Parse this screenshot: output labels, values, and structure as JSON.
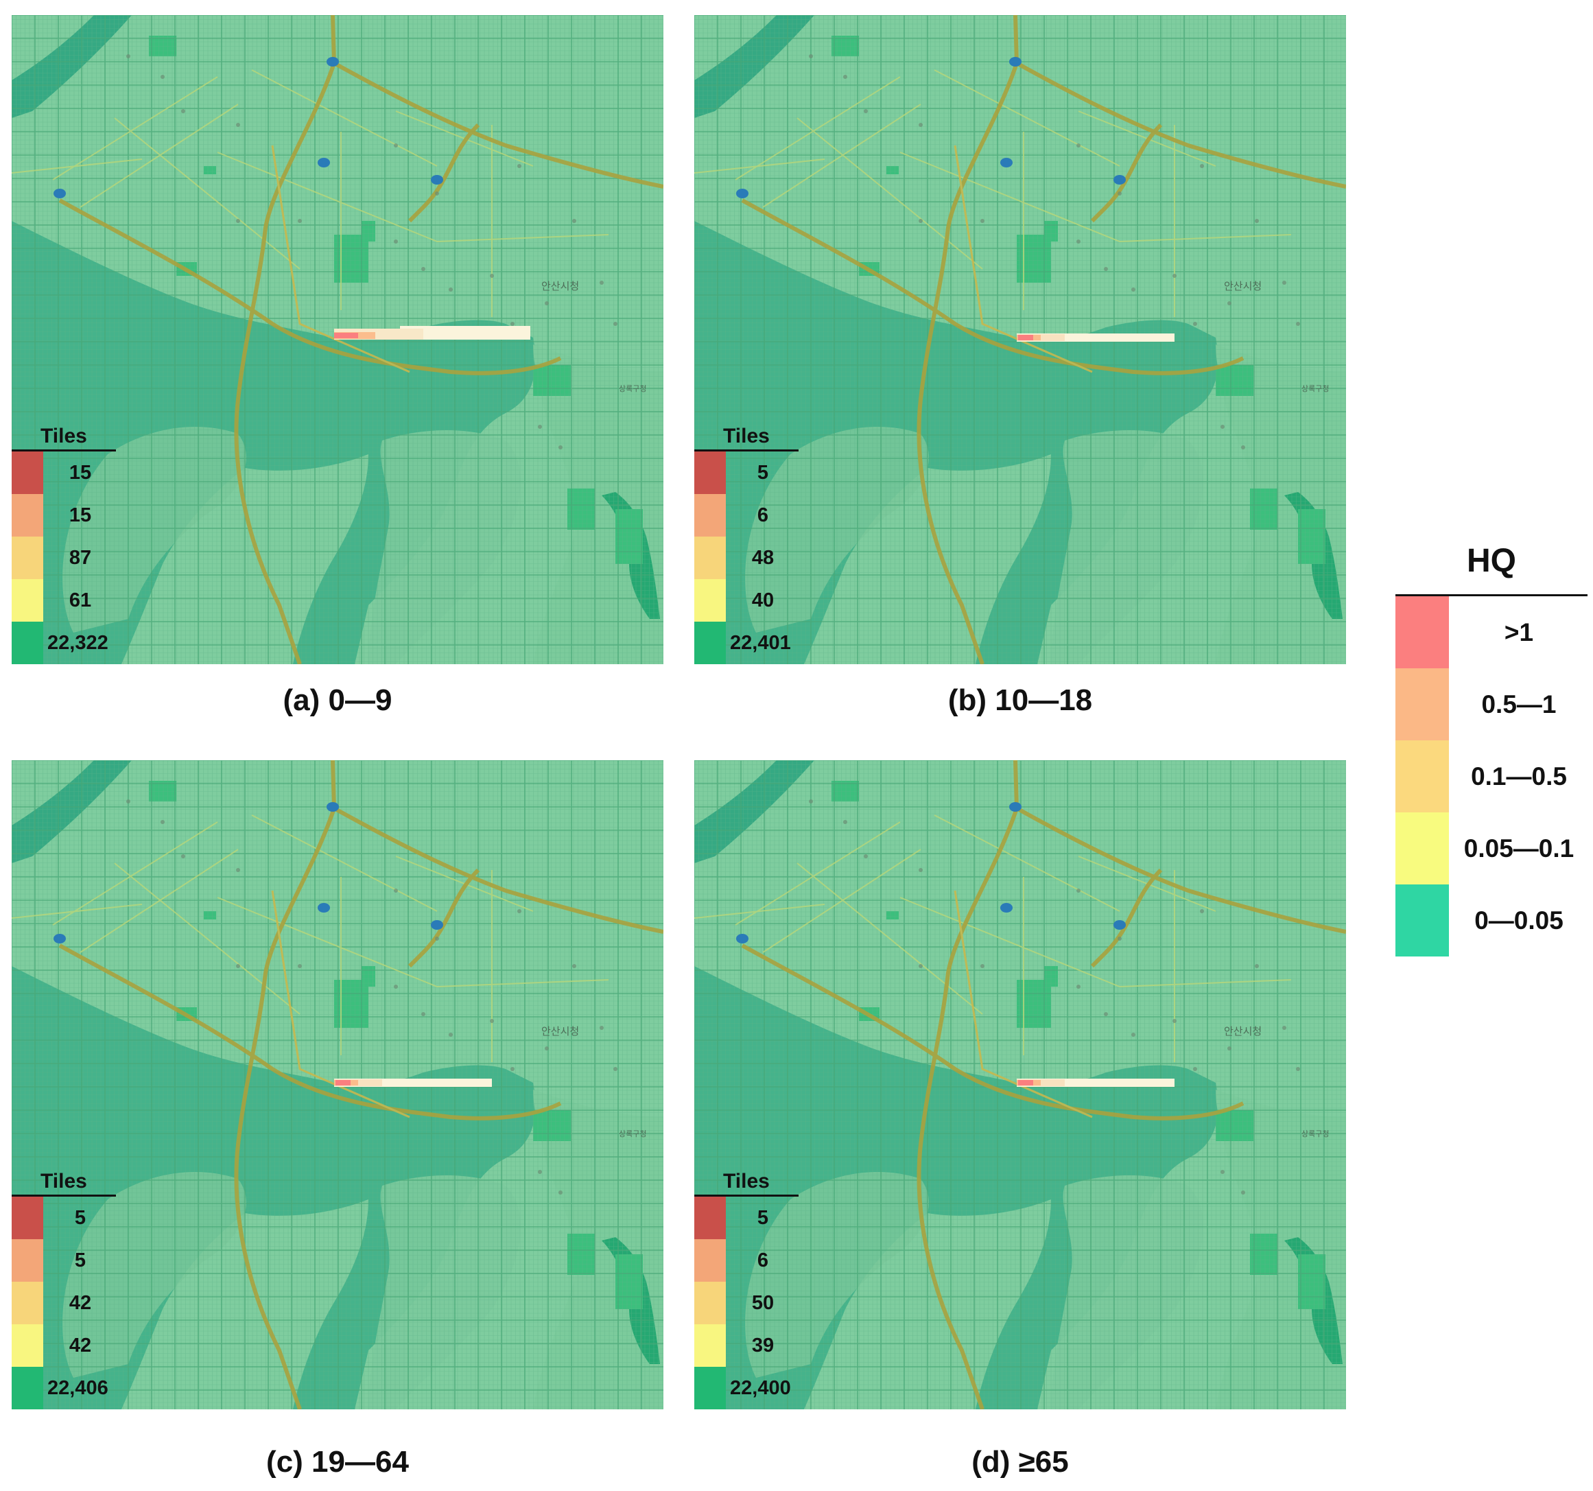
{
  "panels": [
    {
      "id": "a",
      "caption": "(a) 0—9",
      "tiles_title": "Tiles",
      "counts": [
        "15",
        "15",
        "87",
        "61",
        "22,322"
      ],
      "plume": "long"
    },
    {
      "id": "b",
      "caption": "(b) 10—18",
      "tiles_title": "Tiles",
      "counts": [
        "5",
        "6",
        "48",
        "40",
        "22,401"
      ],
      "plume": "short"
    },
    {
      "id": "c",
      "caption": "(c) 19—64",
      "tiles_title": "Tiles",
      "counts": [
        "5",
        "5",
        "42",
        "42",
        "22,406"
      ],
      "plume": "short"
    },
    {
      "id": "d",
      "caption": "(d) ≥65",
      "tiles_title": "Tiles",
      "counts": [
        "5",
        "6",
        "50",
        "39",
        "22,400"
      ],
      "plume": "short"
    }
  ],
  "tile_colors": [
    "#c9504a",
    "#f3a678",
    "#f7d57a",
    "#f8f680",
    "#22b873"
  ],
  "hq_legend": {
    "title": "HQ",
    "classes": [
      {
        "label": ">1",
        "color": "#fb7f7f"
      },
      {
        "label": "0.5—1",
        "color": "#fbb886"
      },
      {
        "label": "0.1—0.5",
        "color": "#fbd97e"
      },
      {
        "label": "0.05—0.1",
        "color": "#f8fb7f"
      },
      {
        "label": "0—0.05",
        "color": "#2fd6a3"
      }
    ]
  },
  "map_labels": [
    "안산시청",
    "상록구청"
  ]
}
